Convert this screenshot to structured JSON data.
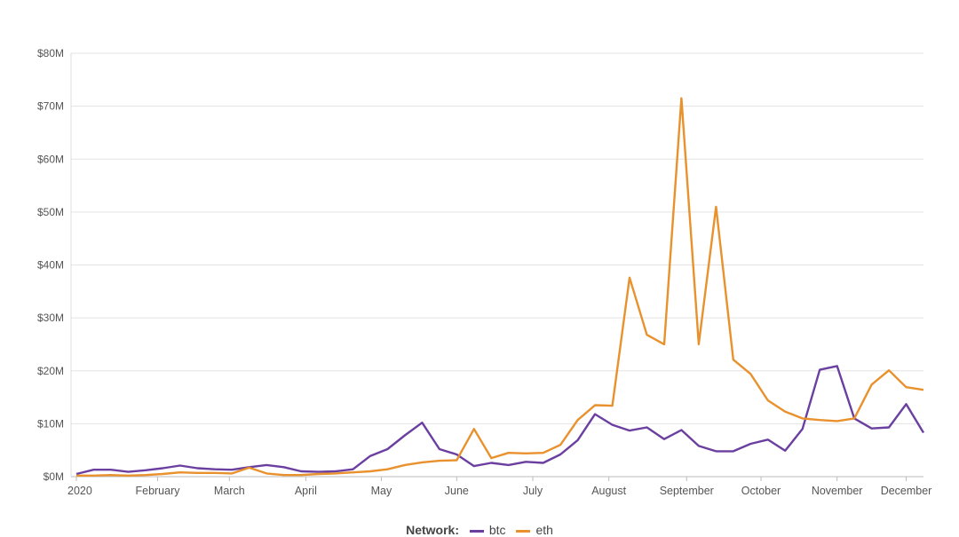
{
  "chart_data": {
    "type": "line",
    "title": "",
    "xlabel": "",
    "ylabel": "",
    "ylim": [
      0,
      80
    ],
    "y_unit": "$M",
    "y_ticks": [
      {
        "value": 0,
        "label": "$0M"
      },
      {
        "value": 10,
        "label": "$10M"
      },
      {
        "value": 20,
        "label": "$20M"
      },
      {
        "value": 30,
        "label": "$30M"
      },
      {
        "value": 40,
        "label": "$40M"
      },
      {
        "value": 50,
        "label": "$50M"
      },
      {
        "value": 60,
        "label": "$60M"
      },
      {
        "value": 70,
        "label": "$70M"
      },
      {
        "value": 80,
        "label": "$80M"
      }
    ],
    "x_ticks": [
      {
        "value": 0,
        "label": "2020",
        "anchor": "start"
      },
      {
        "value": 4.7,
        "label": "February"
      },
      {
        "value": 8.85,
        "label": "March"
      },
      {
        "value": 13.27,
        "label": "April"
      },
      {
        "value": 17.64,
        "label": "May"
      },
      {
        "value": 22.0,
        "label": "June"
      },
      {
        "value": 26.4,
        "label": "July"
      },
      {
        "value": 30.8,
        "label": "August"
      },
      {
        "value": 35.3,
        "label": "September"
      },
      {
        "value": 39.6,
        "label": "October"
      },
      {
        "value": 44.0,
        "label": "November"
      },
      {
        "value": 48.0,
        "label": "December"
      }
    ],
    "xlim": [
      0,
      49
    ],
    "grid": true,
    "legend": {
      "title": "Network:",
      "placement": "bottom"
    },
    "series": [
      {
        "name": "btc",
        "color": "#6b3fa0",
        "values": [
          0.5,
          1.3,
          1.3,
          0.9,
          1.2,
          1.6,
          2.1,
          1.6,
          1.4,
          1.3,
          1.8,
          2.2,
          1.8,
          1.0,
          0.9,
          1.0,
          1.4,
          3.9,
          5.2,
          7.8,
          10.2,
          5.2,
          4.2,
          2.0,
          2.6,
          2.2,
          2.8,
          2.6,
          4.2,
          6.9,
          11.8,
          9.8,
          8.7,
          9.3,
          7.1,
          8.8,
          5.8,
          4.8,
          4.8,
          6.2,
          7.0,
          4.9,
          9.0,
          20.2,
          20.9,
          11.0,
          9.1,
          9.3,
          13.7,
          8.3
        ]
      },
      {
        "name": "eth",
        "color": "#e8912d",
        "values": [
          0.2,
          0.2,
          0.3,
          0.2,
          0.3,
          0.5,
          0.8,
          0.7,
          0.7,
          0.6,
          1.7,
          0.6,
          0.3,
          0.3,
          0.5,
          0.6,
          0.8,
          1.0,
          1.4,
          2.2,
          2.7,
          3.0,
          3.1,
          9.0,
          3.5,
          4.5,
          4.4,
          4.5,
          6.0,
          10.7,
          13.5,
          13.4,
          37.6,
          26.8,
          25.0,
          71.5,
          25.0,
          51.0,
          22.1,
          19.4,
          14.4,
          12.3,
          11.0,
          10.7,
          10.5,
          11.0,
          17.4,
          20.1,
          16.9,
          16.4
        ]
      }
    ]
  }
}
